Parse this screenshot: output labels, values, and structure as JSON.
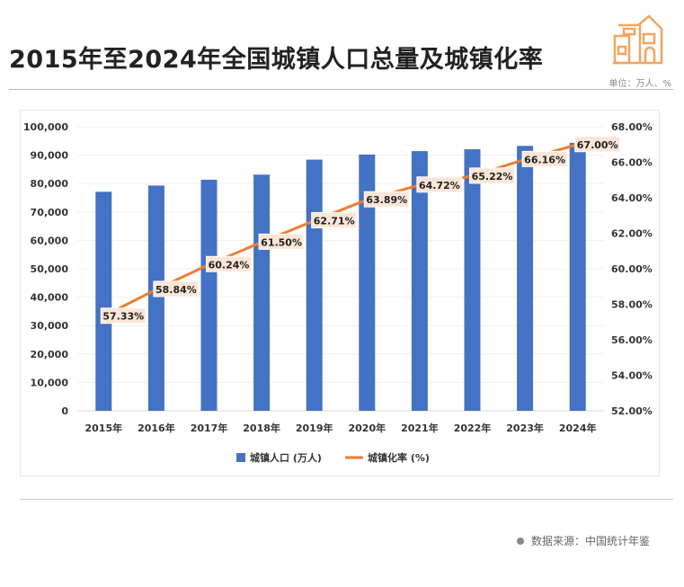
{
  "header": {
    "title": "2015年至2024年全国城镇人口总量及城镇化率",
    "unit": "单位：万人、%",
    "icon": "house-icon"
  },
  "footer": {
    "source": "数据来源：中国统计年鉴"
  },
  "colors": {
    "bar": "#4472C4",
    "line": "#ED7D31",
    "label_bg": "#FBE5D6",
    "icon": "#F4A460"
  },
  "chart_data": {
    "type": "bar+line",
    "categories": [
      "2015年",
      "2016年",
      "2017年",
      "2018年",
      "2019年",
      "2020年",
      "2021年",
      "2022年",
      "2023年",
      "2024年"
    ],
    "series": [
      {
        "name": "城镇人口 (万人)",
        "type": "bar",
        "axis": "left",
        "values": [
          77116,
          79298,
          81347,
          83137,
          88426,
          90220,
          91425,
          92071,
          93267,
          94350
        ]
      },
      {
        "name": "城镇化率 (%)",
        "type": "line",
        "axis": "right",
        "values": [
          57.33,
          58.84,
          60.24,
          61.5,
          62.71,
          63.89,
          64.72,
          65.22,
          66.16,
          67.0
        ],
        "labels": [
          "57.33%",
          "58.84%",
          "60.24%",
          "61.50%",
          "62.71%",
          "63.89%",
          "64.72%",
          "65.22%",
          "66.16%",
          "67.00%"
        ]
      }
    ],
    "left_axis": {
      "ylim": [
        0,
        100000
      ],
      "ticks": [
        "0",
        "10,000",
        "20,000",
        "30,000",
        "40,000",
        "50,000",
        "60,000",
        "70,000",
        "80,000",
        "90,000",
        "100,000"
      ]
    },
    "right_axis": {
      "ylim": [
        52,
        68
      ],
      "ticks": [
        "52.00%",
        "54.00%",
        "56.00%",
        "58.00%",
        "60.00%",
        "62.00%",
        "64.00%",
        "66.00%",
        "68.00%"
      ]
    },
    "grid": true,
    "legend": "bottom"
  }
}
